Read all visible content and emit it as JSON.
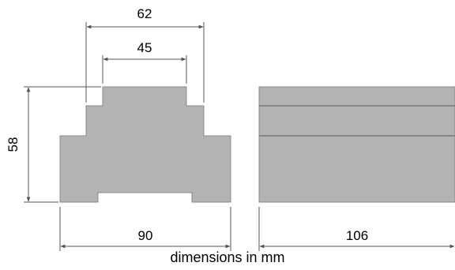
{
  "dimensions": {
    "top_outer_width": "62",
    "top_inner_width": "45",
    "height": "58",
    "front_width": "90",
    "depth": "106"
  },
  "caption": "dimensions in mm",
  "colors": {
    "body_fill": "#b3b3b3",
    "body_edge": "#8a8a8a",
    "dimension_line": "#555555"
  }
}
